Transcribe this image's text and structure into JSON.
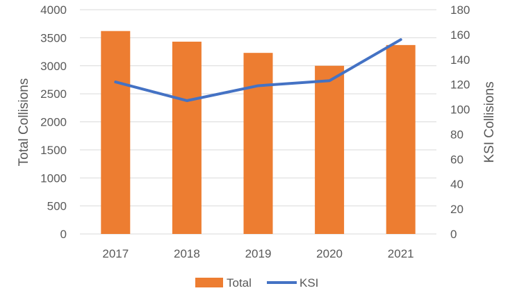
{
  "chart_data": {
    "type": "bar",
    "categories": [
      "2017",
      "2018",
      "2019",
      "2020",
      "2021"
    ],
    "series": [
      {
        "name": "Total",
        "type": "bar",
        "axis": "left",
        "color": "#ED7D31",
        "values": [
          3620,
          3430,
          3230,
          3000,
          3370
        ]
      },
      {
        "name": "KSI",
        "type": "line",
        "axis": "right",
        "color": "#4472C4",
        "values": [
          122,
          107,
          119,
          123,
          156
        ]
      }
    ],
    "ylabel": "Total Collisions",
    "y2label": "KSI Collisions",
    "ylim": [
      0,
      4000
    ],
    "y2lim": [
      0,
      180
    ],
    "yticks": [
      "0",
      "500",
      "1000",
      "1500",
      "2000",
      "2500",
      "3000",
      "3500",
      "4000"
    ],
    "y2ticks": [
      "0",
      "20",
      "40",
      "60",
      "80",
      "100",
      "120",
      "140",
      "160",
      "180"
    ],
    "grid": true,
    "legend_position": "bottom",
    "gridline_color": "#D9D9D9"
  }
}
